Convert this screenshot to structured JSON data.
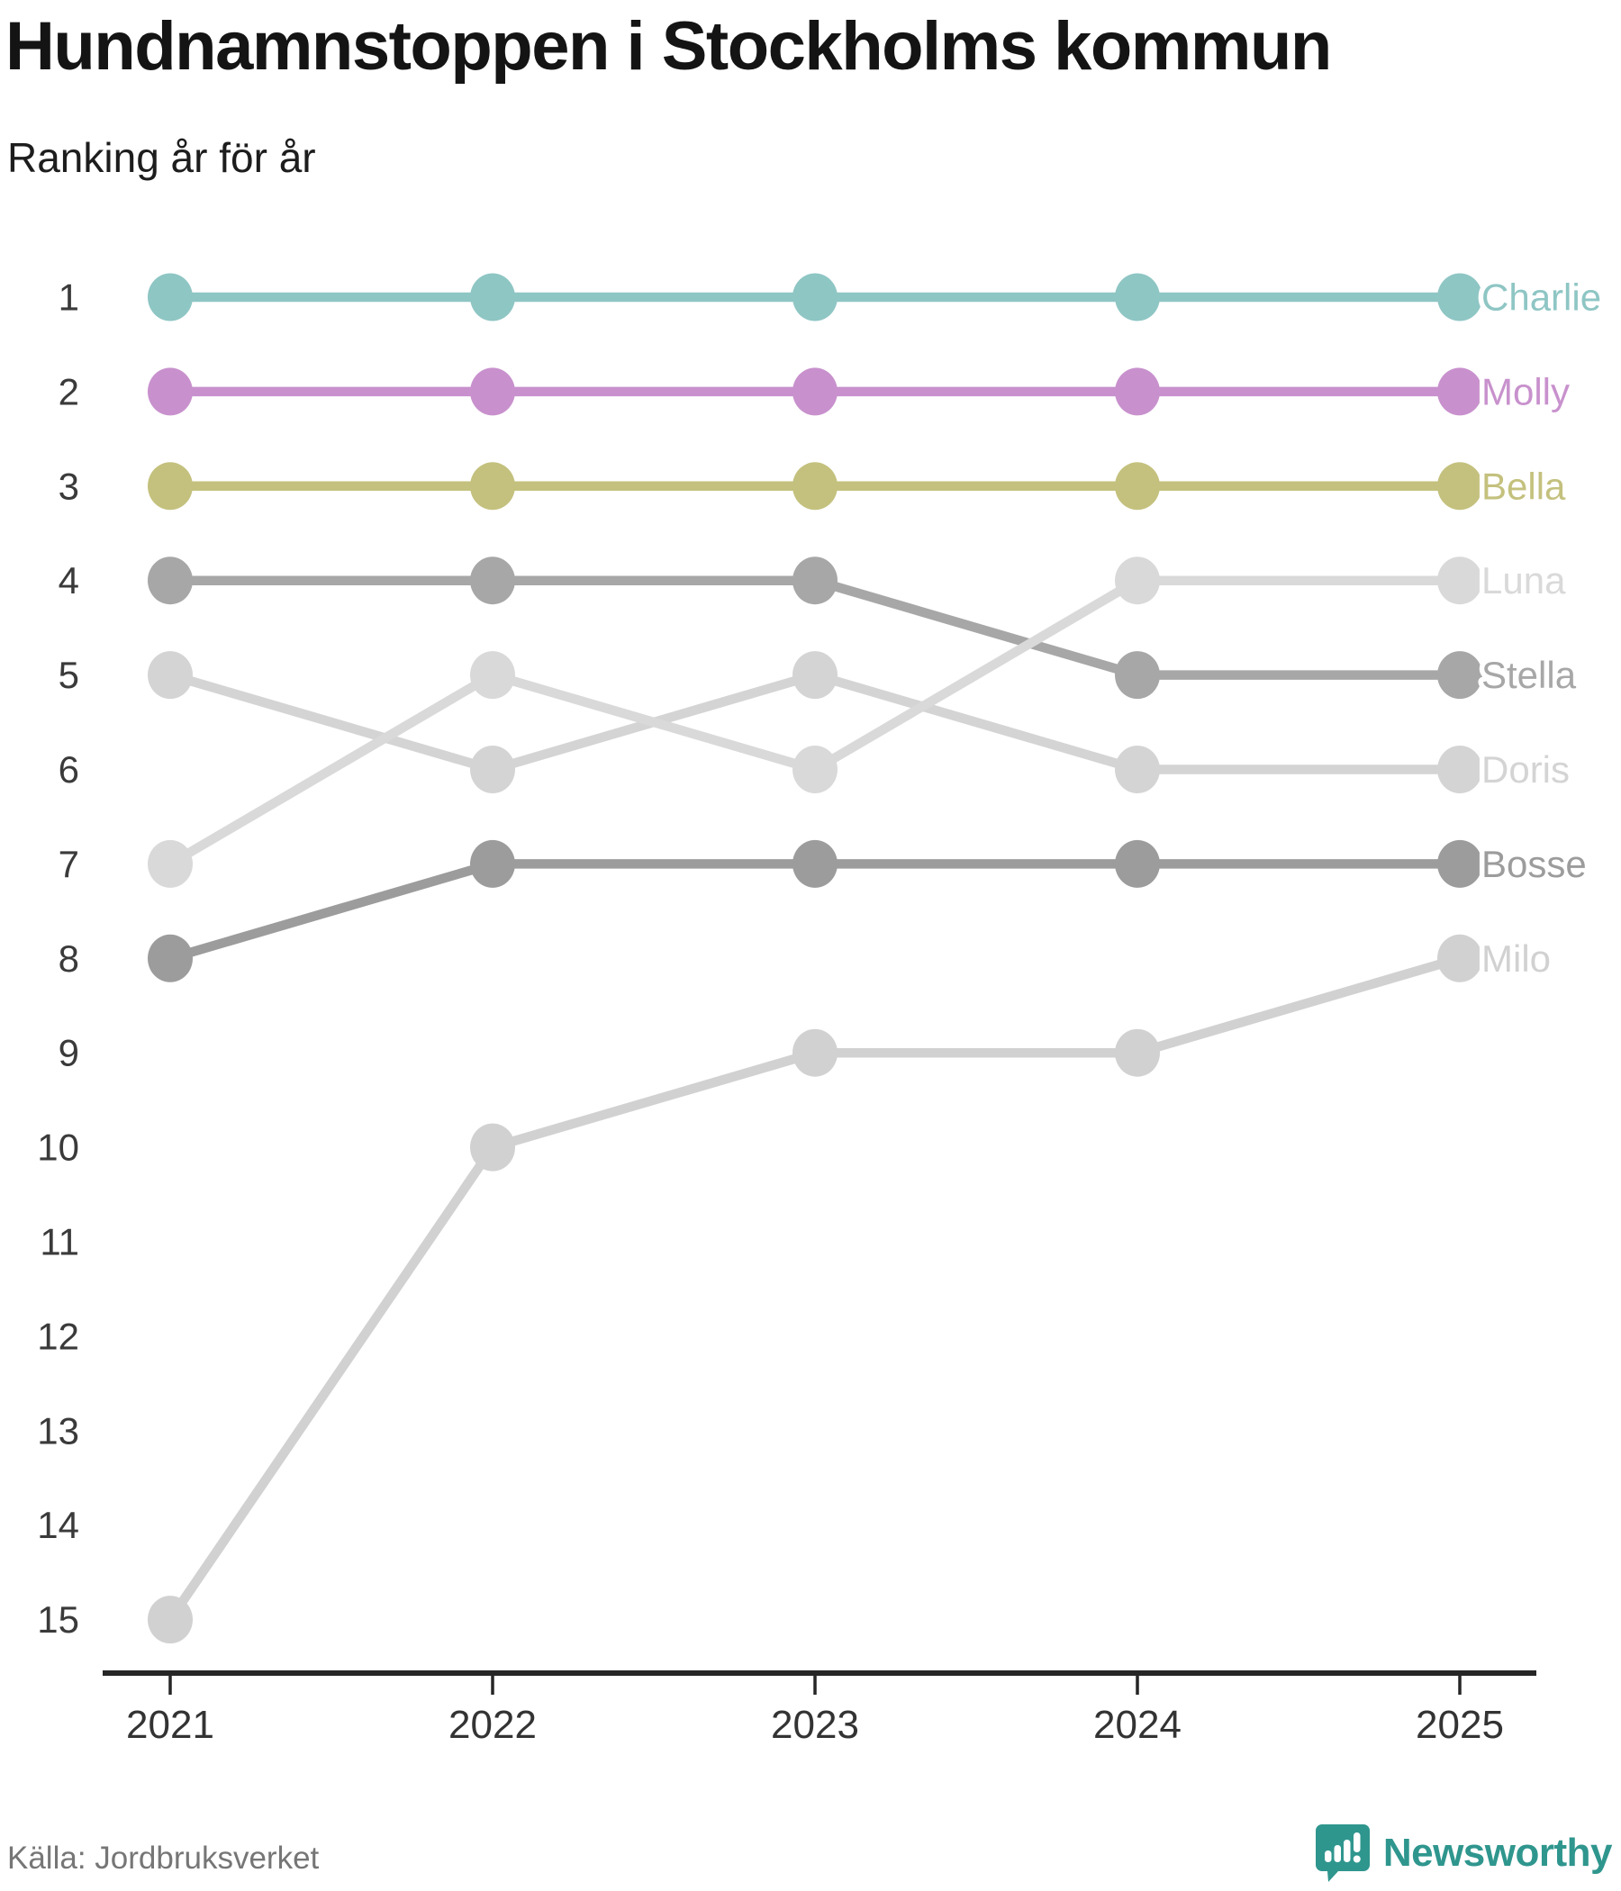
{
  "header": {
    "title": "Hundnamnstoppen i Stockholms kommun",
    "subtitle": "Ranking år för år"
  },
  "chart_data": {
    "type": "line",
    "variant": "bump-ranking",
    "title": "Hundnamnstoppen i Stockholms kommun",
    "subtitle": "Ranking år för år",
    "x_labels": [
      "2021",
      "2022",
      "2023",
      "2024",
      "2025"
    ],
    "y_ticks": [
      "1",
      "2",
      "3",
      "4",
      "5",
      "6",
      "7",
      "8",
      "9",
      "10",
      "11",
      "12",
      "13",
      "14",
      "15"
    ],
    "y_axis_inverted": true,
    "ylim": [
      1,
      15
    ],
    "grid": false,
    "legend_position": "end-of-line-labels",
    "series": [
      {
        "name": "Charlie",
        "color": "#8ec6c4",
        "ranks": [
          1,
          1,
          1,
          1,
          1
        ]
      },
      {
        "name": "Molly",
        "color": "#c891cd",
        "ranks": [
          2,
          2,
          2,
          2,
          2
        ]
      },
      {
        "name": "Bella",
        "color": "#c4c17e",
        "ranks": [
          3,
          3,
          3,
          3,
          3
        ]
      },
      {
        "name": "Luna",
        "color": "#d9d9d9",
        "ranks": [
          7,
          5,
          6,
          4,
          4
        ]
      },
      {
        "name": "Stella",
        "color": "#a7a7a7",
        "ranks": [
          4,
          4,
          4,
          5,
          5
        ]
      },
      {
        "name": "Doris",
        "color": "#d4d4d4",
        "ranks": [
          5,
          6,
          5,
          6,
          6
        ]
      },
      {
        "name": "Bosse",
        "color": "#9c9c9c",
        "ranks": [
          8,
          7,
          7,
          7,
          7
        ]
      },
      {
        "name": "Milo",
        "color": "#d1d1d1",
        "ranks": [
          15,
          10,
          9,
          9,
          8
        ]
      }
    ],
    "axis_color": "#262626",
    "tick_label_color": "#333333"
  },
  "footer": {
    "source": "Källa: Jordbruksverket",
    "brand": "Newsworthy",
    "brand_color": "#2f968e"
  }
}
